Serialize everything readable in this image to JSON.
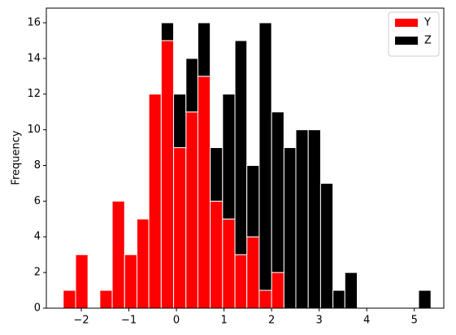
{
  "chart_data": {
    "type": "histogram",
    "stacked": true,
    "y_label": "Frequency",
    "bins": [
      -2.38,
      -2.12,
      -1.86,
      -1.61,
      -1.35,
      -1.09,
      -0.83,
      -0.58,
      -0.32,
      -0.06,
      0.2,
      0.45,
      0.71,
      0.97,
      1.23,
      1.48,
      1.74,
      2.0,
      2.26,
      2.51,
      2.77,
      3.03,
      3.29,
      3.54,
      3.8,
      4.06,
      4.32,
      4.57,
      4.83,
      5.09,
      5.35
    ],
    "series": [
      {
        "name": "Y",
        "color": "#ff0000",
        "values": [
          1,
          3,
          0,
          1,
          6,
          3,
          5,
          12,
          15,
          9,
          11,
          13,
          6,
          5,
          3,
          4,
          1,
          2,
          0,
          0,
          0,
          0,
          0,
          0,
          0,
          0,
          0,
          0,
          0,
          0
        ]
      },
      {
        "name": "Z",
        "color": "#000000",
        "values": [
          0,
          0,
          0,
          0,
          0,
          0,
          0,
          0,
          1,
          3,
          3,
          3,
          3,
          7,
          12,
          4,
          15,
          9,
          9,
          10,
          10,
          7,
          1,
          2,
          0,
          0,
          0,
          0,
          0,
          1
        ]
      }
    ],
    "xlim": [
      -2.735,
      5.62
    ],
    "ylim": [
      0,
      16.82
    ],
    "xticks": [
      {
        "value": -2,
        "label": "−2"
      },
      {
        "value": -1,
        "label": "−1"
      },
      0,
      1,
      2,
      3,
      4,
      5
    ],
    "yticks": [
      0,
      2,
      4,
      6,
      8,
      10,
      12,
      14,
      16
    ],
    "edgecolor": "#ffffff",
    "legend": "upper right"
  }
}
